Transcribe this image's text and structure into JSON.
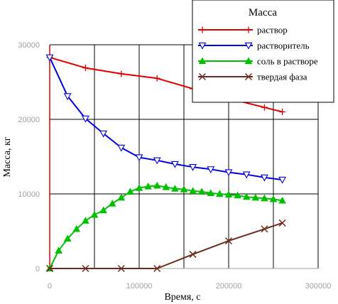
{
  "chart_data": {
    "type": "line",
    "xlabel": "Время, с",
    "ylabel": "Масса, кг",
    "xlim": [
      0,
      300000
    ],
    "ylim": [
      0,
      30000
    ],
    "x_ticks": [
      "0",
      "100000",
      "200000",
      "300000"
    ],
    "y_ticks": [
      "0",
      "10000",
      "20000",
      "30000"
    ],
    "grid": true,
    "legend_title": "Масса",
    "legend_position": "top-right",
    "series": [
      {
        "name": "раствор",
        "color": "#e00000",
        "marker": "plus",
        "x": [
          0,
          40000,
          80000,
          120000,
          160000,
          200000,
          240000,
          260000
        ],
        "y": [
          28300,
          26900,
          26100,
          25500,
          24100,
          22800,
          21600,
          21000
        ]
      },
      {
        "name": "растворитель",
        "color": "#0000e0",
        "marker": "triangle-down",
        "x": [
          0,
          20000,
          40000,
          60000,
          80000,
          100000,
          120000,
          140000,
          160000,
          180000,
          200000,
          220000,
          240000,
          260000
        ],
        "y": [
          28300,
          23100,
          20100,
          18100,
          16200,
          14900,
          14500,
          14000,
          13600,
          13300,
          12900,
          12600,
          12200,
          11900
        ]
      },
      {
        "name": "соль в растворе",
        "color": "#00c000",
        "marker": "triangle-up",
        "x": [
          0,
          10000,
          20000,
          30000,
          40000,
          50000,
          60000,
          70000,
          80000,
          90000,
          100000,
          110000,
          120000,
          130000,
          140000,
          150000,
          160000,
          170000,
          180000,
          190000,
          200000,
          210000,
          220000,
          230000,
          240000,
          250000,
          260000
        ],
        "y": [
          0,
          2400,
          4000,
          5300,
          6400,
          7200,
          7800,
          8700,
          9500,
          10300,
          10800,
          11000,
          11100,
          10900,
          10700,
          10600,
          10400,
          10300,
          10100,
          10000,
          9900,
          9800,
          9600,
          9500,
          9400,
          9300,
          9100
        ]
      },
      {
        "name": "твердая фаза",
        "color": "#6b2a1c",
        "marker": "x",
        "x": [
          0,
          40000,
          80000,
          120000,
          160000,
          200000,
          240000,
          260000
        ],
        "y": [
          0,
          0,
          0,
          0,
          1900,
          3700,
          5300,
          6100
        ]
      }
    ]
  }
}
